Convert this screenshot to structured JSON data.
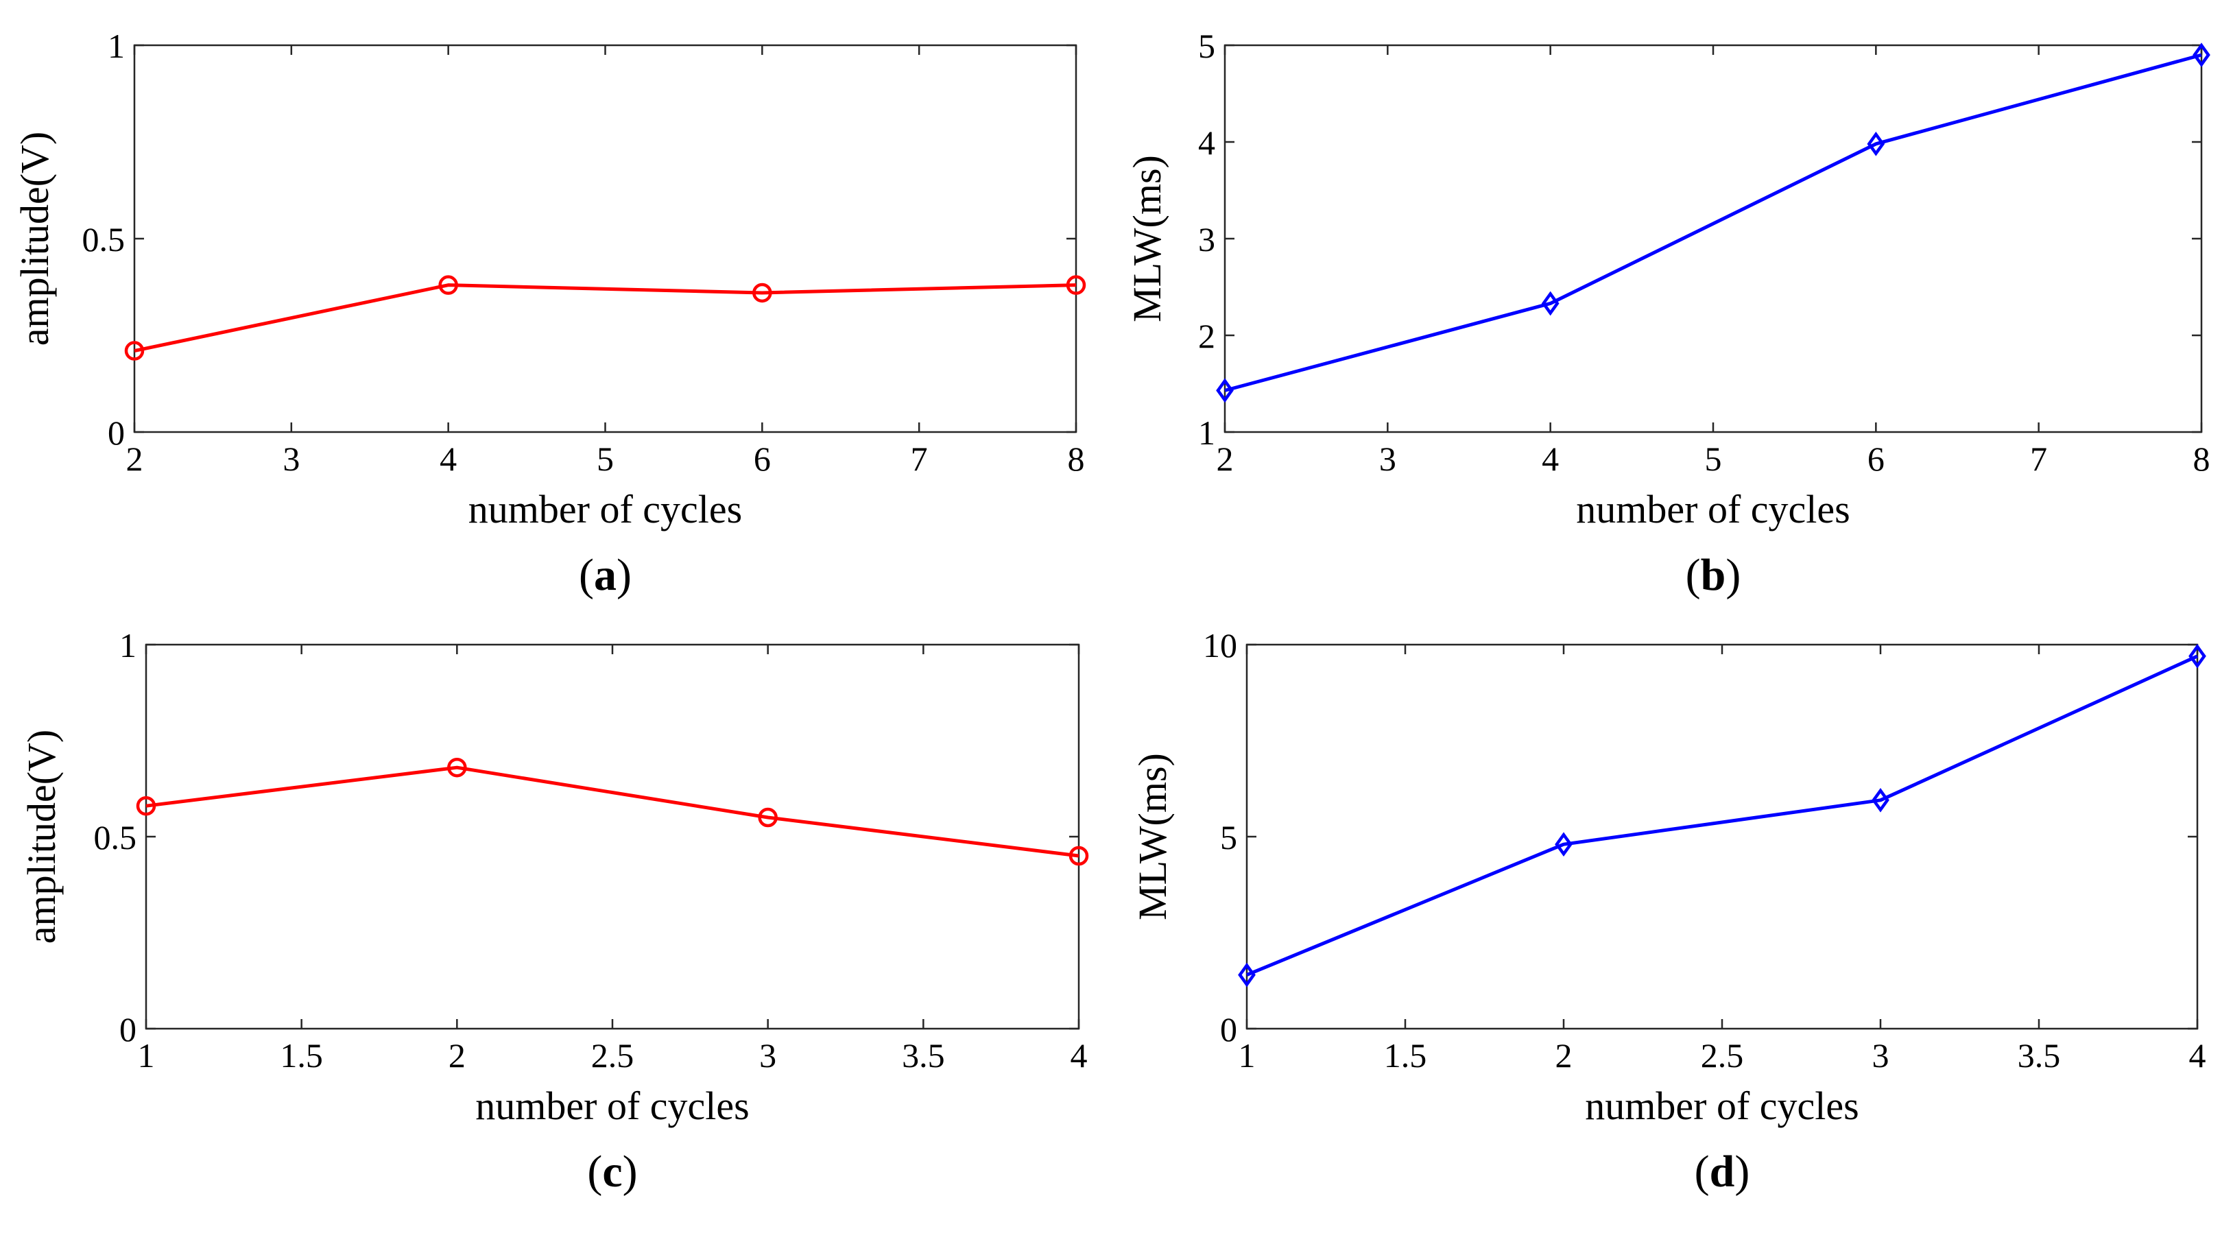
{
  "figure": {
    "panels": [
      {
        "label_open": "(",
        "letter": "a",
        "label_close": ")"
      },
      {
        "label_open": "(",
        "letter": "b",
        "label_close": ")"
      },
      {
        "label_open": "(",
        "letter": "c",
        "label_close": ")"
      },
      {
        "label_open": "(",
        "letter": "d",
        "label_close": ")"
      }
    ]
  },
  "chart_data": [
    {
      "type": "line",
      "panel": "a",
      "title": "",
      "xlabel": "number of cycles",
      "ylabel": "amplitude(V)",
      "xlim": [
        2,
        8
      ],
      "ylim": [
        0,
        1
      ],
      "xticks": [
        2,
        3,
        4,
        5,
        6,
        7,
        8
      ],
      "xtick_labels": [
        "2",
        "3",
        "4",
        "5",
        "6",
        "7",
        "8"
      ],
      "yticks": [
        0,
        0.5,
        1
      ],
      "ytick_labels": [
        "0",
        "0.5",
        "1"
      ],
      "series": [
        {
          "name": "amplitude",
          "color": "#ff0000",
          "marker": "circle",
          "x": [
            2,
            4,
            6,
            8
          ],
          "values": [
            0.21,
            0.38,
            0.36,
            0.38
          ]
        }
      ]
    },
    {
      "type": "line",
      "panel": "b",
      "title": "",
      "xlabel": "number of cycles",
      "ylabel": "MLW(ms)",
      "xlim": [
        2,
        8
      ],
      "ylim": [
        1,
        5
      ],
      "xticks": [
        2,
        3,
        4,
        5,
        6,
        7,
        8
      ],
      "xtick_labels": [
        "2",
        "3",
        "4",
        "5",
        "6",
        "7",
        "8"
      ],
      "yticks": [
        1,
        2,
        3,
        4,
        5
      ],
      "ytick_labels": [
        "1",
        "2",
        "3",
        "4",
        "5"
      ],
      "series": [
        {
          "name": "MLW",
          "color": "#0000ff",
          "marker": "diamond",
          "x": [
            2,
            4,
            6,
            8
          ],
          "values": [
            1.43,
            2.33,
            3.98,
            4.9
          ]
        }
      ]
    },
    {
      "type": "line",
      "panel": "c",
      "title": "",
      "xlabel": "number of cycles",
      "ylabel": "amplitude(V)",
      "xlim": [
        1,
        4
      ],
      "ylim": [
        0,
        1
      ],
      "xticks": [
        1,
        1.5,
        2,
        2.5,
        3,
        3.5,
        4
      ],
      "xtick_labels": [
        "1",
        "1.5",
        "2",
        "2.5",
        "3",
        "3.5",
        "4"
      ],
      "yticks": [
        0,
        0.5,
        1
      ],
      "ytick_labels": [
        "0",
        "0.5",
        "1"
      ],
      "series": [
        {
          "name": "amplitude",
          "color": "#ff0000",
          "marker": "circle",
          "x": [
            1,
            2,
            3,
            4
          ],
          "values": [
            0.58,
            0.68,
            0.55,
            0.45
          ]
        }
      ]
    },
    {
      "type": "line",
      "panel": "d",
      "title": "",
      "xlabel": "number of cycles",
      "ylabel": "MLW(ms)",
      "xlim": [
        1,
        4
      ],
      "ylim": [
        0,
        10
      ],
      "xticks": [
        1,
        1.5,
        2,
        2.5,
        3,
        3.5,
        4
      ],
      "xtick_labels": [
        "1",
        "1.5",
        "2",
        "2.5",
        "3",
        "3.5",
        "4"
      ],
      "yticks": [
        0,
        5,
        10
      ],
      "ytick_labels": [
        "0",
        "5",
        "10"
      ],
      "series": [
        {
          "name": "MLW",
          "color": "#0000ff",
          "marker": "diamond",
          "x": [
            1,
            2,
            3,
            4
          ],
          "values": [
            1.4,
            4.8,
            5.95,
            9.7
          ]
        }
      ]
    }
  ]
}
